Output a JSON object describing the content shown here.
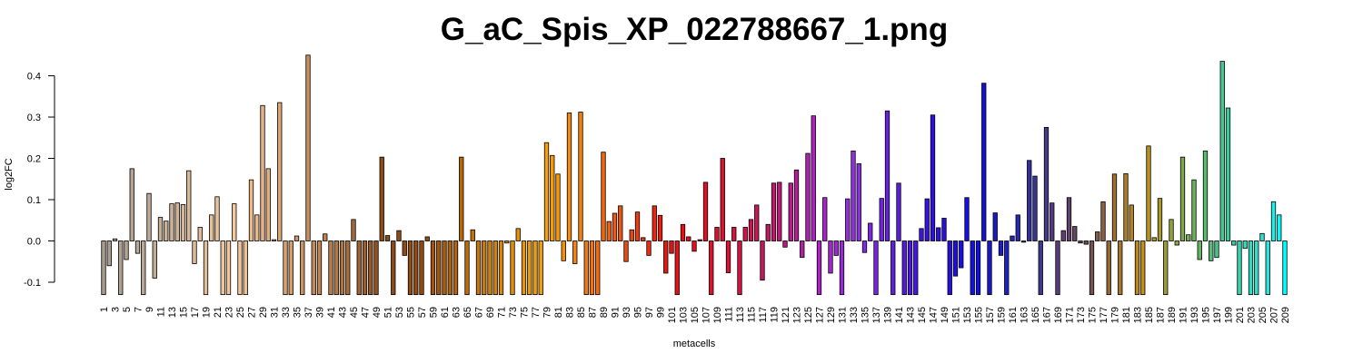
{
  "chart_data": {
    "type": "bar",
    "title": "G_aC_Spis_XP_022788667_1.png",
    "xlabel": "metacells",
    "ylabel": "log2FC",
    "ylim": [
      -0.13,
      0.46
    ],
    "yticks": [
      -0.1,
      0.0,
      0.1,
      0.2,
      0.3,
      0.4
    ],
    "ytick_labels": [
      "-0.1",
      "0.0",
      "0.1",
      "0.2",
      "0.3",
      "0.4"
    ],
    "grid": false,
    "categories": [
      "1",
      "2",
      "3",
      "4",
      "5",
      "6",
      "7",
      "8",
      "9",
      "10",
      "11",
      "12",
      "13",
      "14",
      "15",
      "16",
      "17",
      "18",
      "19",
      "20",
      "21",
      "22",
      "23",
      "24",
      "25",
      "26",
      "27",
      "28",
      "29",
      "30",
      "31",
      "32",
      "33",
      "34",
      "35",
      "36",
      "37",
      "38",
      "39",
      "40",
      "41",
      "42",
      "43",
      "44",
      "45",
      "46",
      "47",
      "48",
      "49",
      "50",
      "51",
      "52",
      "53",
      "54",
      "55",
      "56",
      "57",
      "58",
      "59",
      "60",
      "61",
      "62",
      "63",
      "64",
      "65",
      "66",
      "67",
      "68",
      "69",
      "70",
      "71",
      "72",
      "73",
      "74",
      "75",
      "76",
      "77",
      "78",
      "79",
      "80",
      "81",
      "82",
      "83",
      "84",
      "85",
      "86",
      "87",
      "88",
      "89",
      "90",
      "91",
      "92",
      "93",
      "94",
      "95",
      "96",
      "97",
      "98",
      "99",
      "100",
      "101",
      "102",
      "103",
      "104",
      "105",
      "106",
      "107",
      "108",
      "109",
      "110",
      "111",
      "112",
      "113",
      "114",
      "115",
      "116",
      "117",
      "118",
      "119",
      "120",
      "121",
      "122",
      "123",
      "124",
      "125",
      "126",
      "127",
      "128",
      "129",
      "130",
      "131",
      "132",
      "133",
      "134",
      "135",
      "136",
      "137",
      "138",
      "139",
      "140",
      "141",
      "142",
      "143",
      "144",
      "145",
      "146",
      "147",
      "148",
      "149",
      "150",
      "151",
      "152",
      "153",
      "154",
      "155",
      "156",
      "157",
      "158",
      "159",
      "160",
      "161",
      "162",
      "163",
      "164",
      "165",
      "166",
      "167",
      "168",
      "169",
      "170",
      "171",
      "172",
      "173",
      "174",
      "175",
      "176",
      "177",
      "178",
      "179",
      "180",
      "181",
      "182",
      "183",
      "184",
      "185",
      "186",
      "187",
      "188",
      "189",
      "190",
      "191",
      "192",
      "193",
      "194",
      "195",
      "196",
      "197",
      "198",
      "199",
      "200",
      "201",
      "202",
      "203",
      "204",
      "205",
      "206",
      "207",
      "208",
      "209"
    ],
    "xtick_labels": [
      "1",
      "3",
      "5",
      "7",
      "9",
      "11",
      "13",
      "15",
      "17",
      "19",
      "21",
      "23",
      "25",
      "27",
      "29",
      "31",
      "33",
      "35",
      "37",
      "39",
      "41",
      "43",
      "45",
      "47",
      "49",
      "51",
      "53",
      "55",
      "57",
      "59",
      "61",
      "63",
      "65",
      "67",
      "69",
      "71",
      "73",
      "75",
      "77",
      "79",
      "81",
      "83",
      "85",
      "87",
      "89",
      "91",
      "93",
      "95",
      "97",
      "99",
      "101",
      "103",
      "105",
      "107",
      "109",
      "111",
      "113",
      "115",
      "117",
      "119",
      "121",
      "123",
      "125",
      "127",
      "129",
      "131",
      "133",
      "135",
      "137",
      "139",
      "141",
      "143",
      "145",
      "147",
      "149",
      "151",
      "153",
      "155",
      "157",
      "159",
      "161",
      "163",
      "165",
      "167",
      "169",
      "171",
      "173",
      "175",
      "177",
      "179",
      "181",
      "183",
      "185",
      "187",
      "189",
      "191",
      "193",
      "195",
      "197",
      "199",
      "201",
      "203",
      "205",
      "207",
      "209"
    ],
    "values": [
      -0.13,
      -0.06,
      0.005,
      -0.13,
      -0.045,
      0.175,
      -0.03,
      -0.13,
      0.115,
      -0.09,
      0.057,
      0.048,
      0.09,
      0.092,
      0.088,
      0.17,
      -0.055,
      0.033,
      -0.13,
      0.063,
      0.107,
      -0.13,
      -0.13,
      0.09,
      -0.13,
      -0.13,
      0.148,
      0.063,
      0.328,
      0.175,
      0.003,
      0.335,
      -0.13,
      -0.13,
      0.012,
      -0.13,
      0.45,
      -0.13,
      -0.13,
      0.017,
      -0.13,
      -0.13,
      -0.13,
      -0.13,
      0.052,
      -0.13,
      -0.13,
      -0.13,
      -0.13,
      0.203,
      0.013,
      -0.13,
      0.025,
      -0.035,
      -0.13,
      -0.13,
      -0.13,
      0.01,
      -0.13,
      -0.13,
      -0.13,
      -0.13,
      -0.13,
      0.203,
      -0.13,
      0.027,
      -0.13,
      -0.13,
      -0.13,
      -0.13,
      -0.13,
      -0.005,
      -0.13,
      0.03,
      -0.13,
      -0.13,
      -0.13,
      -0.13,
      0.238,
      0.207,
      0.162,
      -0.048,
      0.31,
      -0.055,
      0.312,
      -0.13,
      -0.13,
      -0.13,
      0.215,
      0.047,
      0.067,
      0.085,
      -0.05,
      0.027,
      0.07,
      0.008,
      -0.035,
      0.085,
      0.062,
      -0.078,
      -0.03,
      -0.13,
      0.04,
      0.01,
      -0.025,
      0.003,
      0.142,
      -0.13,
      0.033,
      0.2,
      -0.077,
      0.033,
      -0.13,
      0.033,
      0.052,
      0.087,
      -0.095,
      0.04,
      0.14,
      0.142,
      -0.015,
      0.14,
      0.172,
      -0.04,
      0.212,
      0.303,
      -0.13,
      0.105,
      -0.078,
      -0.035,
      -0.13,
      0.102,
      0.218,
      0.187,
      -0.028,
      0.043,
      -0.13,
      0.103,
      0.315,
      -0.13,
      0.14,
      -0.13,
      -0.13,
      -0.13,
      0.03,
      0.102,
      0.305,
      0.032,
      0.055,
      -0.13,
      -0.085,
      -0.065,
      0.105,
      -0.13,
      -0.13,
      0.382,
      -0.13,
      0.068,
      -0.035,
      -0.13,
      0.012,
      0.063,
      -0.003,
      0.195,
      0.157,
      -0.13,
      0.275,
      0.092,
      -0.13,
      0.025,
      0.105,
      0.035,
      -0.005,
      -0.008,
      -0.13,
      0.022,
      0.095,
      -0.13,
      0.162,
      -0.13,
      0.163,
      0.087,
      -0.13,
      -0.13,
      0.23,
      0.008,
      0.103,
      -0.13,
      0.052,
      -0.01,
      0.203,
      0.015,
      0.148,
      -0.045,
      0.218,
      -0.048,
      -0.04,
      0.435,
      0.322,
      -0.01,
      -0.13,
      -0.018,
      -0.13,
      -0.13,
      0.018,
      -0.13,
      0.095,
      0.063,
      -0.13
    ],
    "color_stops": [
      {
        "at": 1,
        "color": "#a89c90"
      },
      {
        "at": 8,
        "color": "#b9a997"
      },
      {
        "at": 16,
        "color": "#d9b898"
      },
      {
        "at": 24,
        "color": "#f5c99b"
      },
      {
        "at": 33,
        "color": "#d9a070"
      },
      {
        "at": 42,
        "color": "#b27848"
      },
      {
        "at": 50,
        "color": "#8b4c1c"
      },
      {
        "at": 57,
        "color": "#934a10"
      },
      {
        "at": 64,
        "color": "#b86808"
      },
      {
        "at": 72,
        "color": "#d98b10"
      },
      {
        "at": 79,
        "color": "#f6a10a"
      },
      {
        "at": 86,
        "color": "#f27a0f"
      },
      {
        "at": 93,
        "color": "#ee4a10"
      },
      {
        "at": 101,
        "color": "#e81010"
      },
      {
        "at": 110,
        "color": "#e01030"
      },
      {
        "at": 119,
        "color": "#c0186a"
      },
      {
        "at": 126,
        "color": "#b020c0"
      },
      {
        "at": 133,
        "color": "#9030e0"
      },
      {
        "at": 140,
        "color": "#6020e0"
      },
      {
        "at": 147,
        "color": "#3010e0"
      },
      {
        "at": 155,
        "color": "#1010e0"
      },
      {
        "at": 162,
        "color": "#2828b0"
      },
      {
        "at": 166,
        "color": "#3d3a8c"
      },
      {
        "at": 169,
        "color": "#5a3c7a"
      },
      {
        "at": 174,
        "color": "#6a4c55"
      },
      {
        "at": 179,
        "color": "#a07030"
      },
      {
        "at": 184,
        "color": "#c09018"
      },
      {
        "at": 188,
        "color": "#9c9c3a"
      },
      {
        "at": 193,
        "color": "#6caf5a"
      },
      {
        "at": 199,
        "color": "#3ccc9c"
      },
      {
        "at": 205,
        "color": "#30e0d0"
      },
      {
        "at": 209,
        "color": "#00ffff"
      }
    ]
  }
}
